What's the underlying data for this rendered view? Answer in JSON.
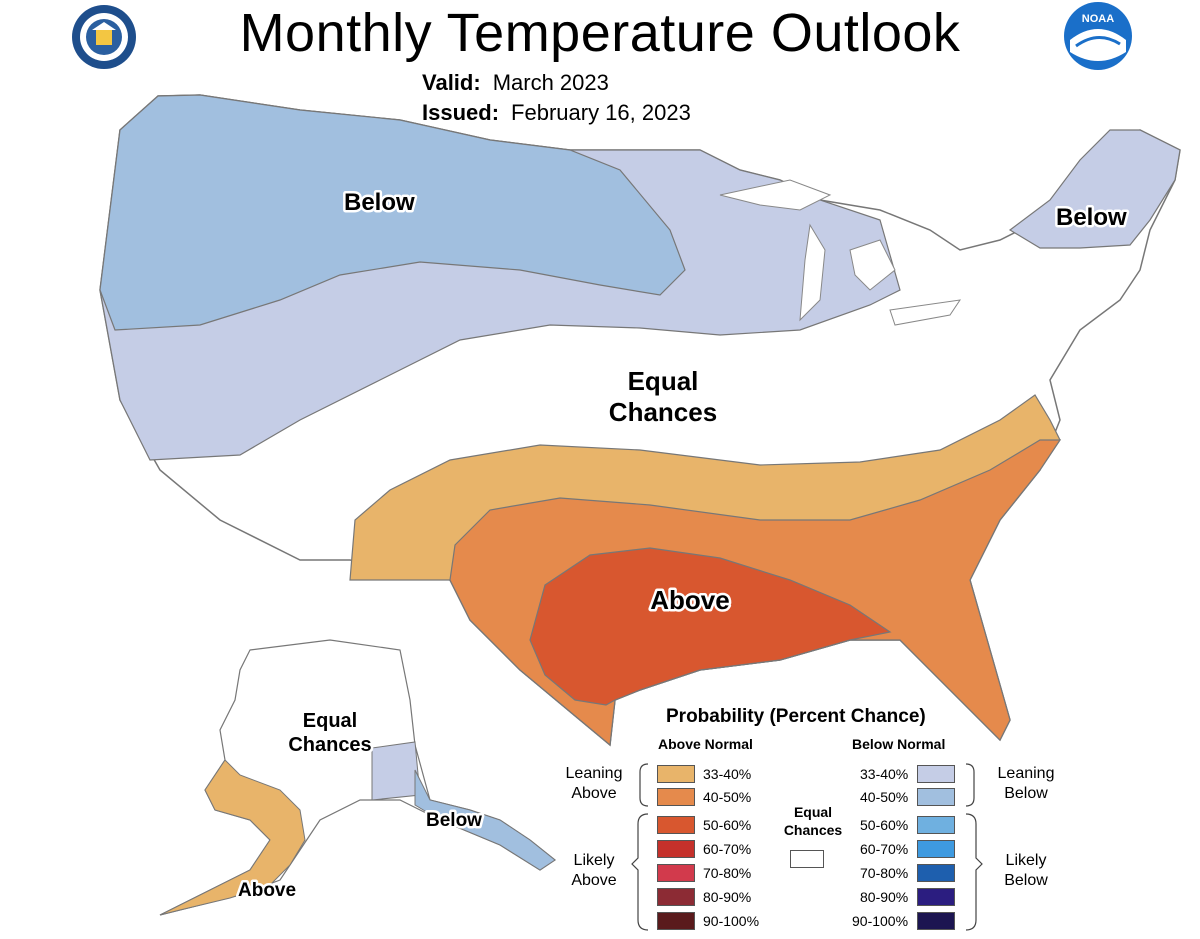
{
  "header": {
    "title": "Monthly Temperature Outlook",
    "valid_label": "Valid:",
    "valid_value": "March 2023",
    "issued_label": "Issued:",
    "issued_value": "February 16, 2023"
  },
  "map_labels": {
    "below_nw": "Below",
    "below_ne": "Below",
    "equal_line1": "Equal",
    "equal_line2": "Chances",
    "above": "Above",
    "ak_equal_line1": "Equal",
    "ak_equal_line2": "Chances",
    "ak_below": "Below",
    "ak_above": "Above"
  },
  "colors": {
    "above_33_40": "#e8b46a",
    "above_40_50": "#e58a4c",
    "above_50_60": "#d8572f",
    "above_60_70": "#c5312b",
    "above_70_80": "#d23a4c",
    "above_80_90": "#8c2b34",
    "above_90_100": "#5a1a1c",
    "below_33_40": "#c5cde6",
    "below_40_50": "#a1bfdf",
    "below_50_60": "#6fb0e0",
    "below_60_70": "#3e9ae0",
    "below_70_80": "#1e5fae",
    "below_80_90": "#2b1d80",
    "below_90_100": "#1c1551",
    "equal": "#ffffff"
  },
  "legend": {
    "title": "Probability (Percent Chance)",
    "above_header": "Above Normal",
    "below_header": "Below Normal",
    "equal_line1": "Equal",
    "equal_line2": "Chances",
    "leaning_above_1": "Leaning",
    "leaning_above_2": "Above",
    "likely_above_1": "Likely",
    "likely_above_2": "Above",
    "leaning_below_1": "Leaning",
    "leaning_below_2": "Below",
    "likely_below_1": "Likely",
    "likely_below_2": "Below",
    "ranges": [
      "33-40%",
      "40-50%",
      "50-60%",
      "60-70%",
      "70-80%",
      "80-90%",
      "90-100%"
    ]
  },
  "logos": {
    "left_icon": "commerce-seal-icon",
    "right_icon": "noaa-logo-icon",
    "right_text": "NOAA"
  }
}
